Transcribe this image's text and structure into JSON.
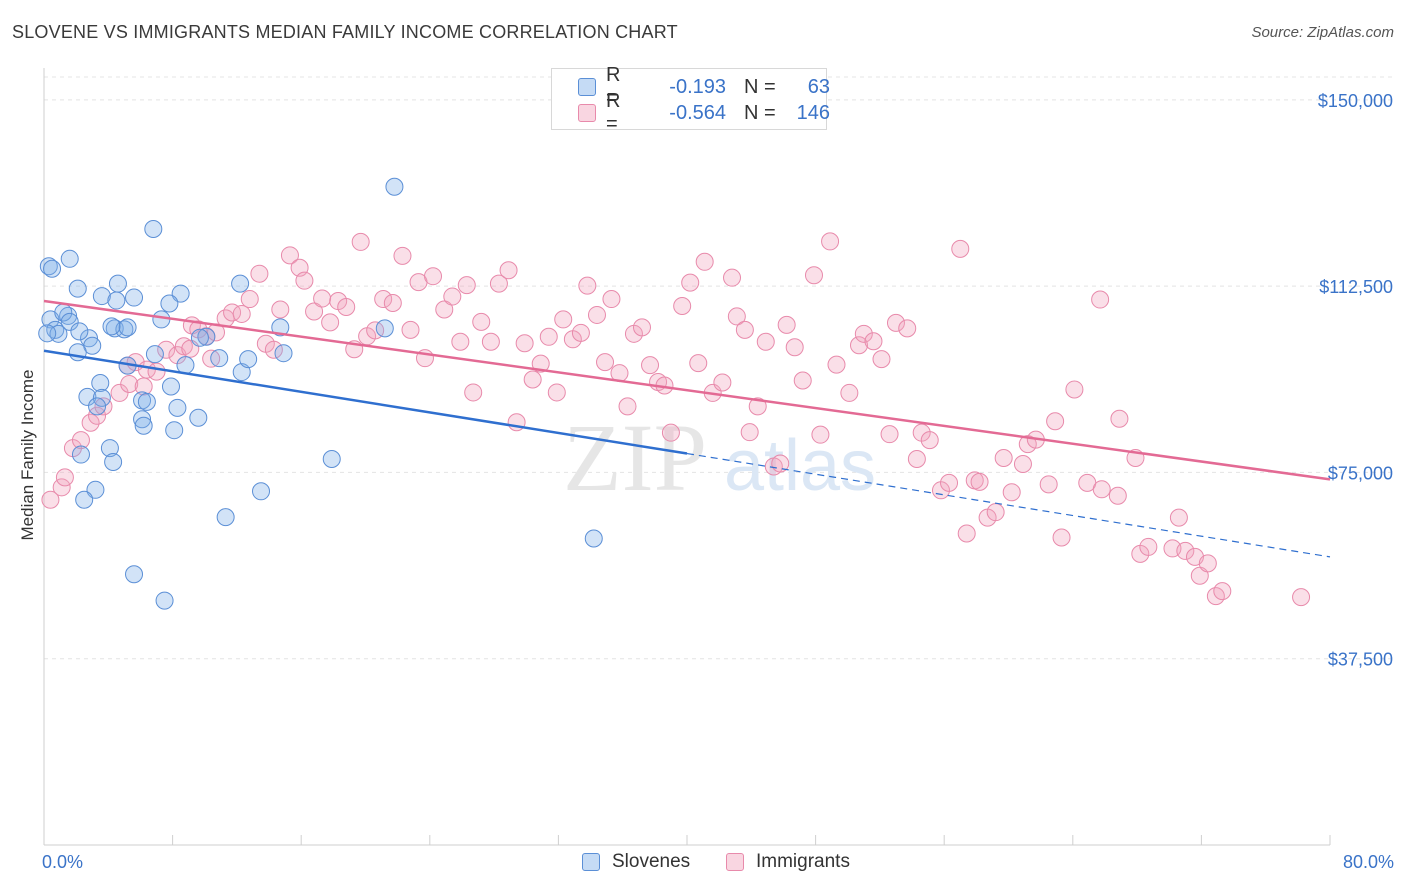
{
  "header": {
    "title": "SLOVENE VS IMMIGRANTS MEDIAN FAMILY INCOME CORRELATION CHART",
    "source": "Source: ZipAtlas.com"
  },
  "watermark": {
    "zip": "ZIP",
    "atlas": "atlas"
  },
  "legend_top": {
    "rows": [
      {
        "r_label": "R =",
        "r_value": "-0.193",
        "n_label": "N =",
        "n_value": "63",
        "color": "#7fb0e8"
      },
      {
        "r_label": "R =",
        "r_value": "-0.564",
        "n_label": "N =",
        "n_value": "146",
        "color": "#f2a3bd"
      }
    ]
  },
  "legend_bottom": {
    "items": [
      {
        "label": "Slovenes"
      },
      {
        "label": "Immigrants"
      }
    ]
  },
  "colors": {
    "slovenes_fill": "rgba(127,176,232,0.35)",
    "slovenes_stroke": "#5b8fd6",
    "slovenes_line": "#2f6fcf",
    "immigrants_fill": "rgba(242,163,189,0.35)",
    "immigrants_stroke": "#e88aab",
    "immigrants_line": "#e36a94",
    "tick_label": "#3a73c8",
    "grid": "#e4e4e4"
  },
  "chart_data": {
    "type": "scatter",
    "title": "SLOVENE VS IMMIGRANTS MEDIAN FAMILY INCOME CORRELATION CHART",
    "xlabel": "",
    "ylabel": "Median Family Income",
    "xlim": [
      0,
      80
    ],
    "ylim": [
      0,
      155000
    ],
    "x_tick_labels": [
      "0.0%",
      "80.0%"
    ],
    "y_ticks": [
      37500,
      75000,
      112500,
      150000
    ],
    "y_tick_labels": [
      "$37,500",
      "$75,000",
      "$112,500",
      "$150,000"
    ],
    "grid": "horizontal dashed",
    "legend_position": "top-center",
    "series": [
      {
        "name": "Slovenes",
        "R": -0.193,
        "N": 63,
        "trend": {
          "x": [
            0,
            40
          ],
          "y": [
            99500,
            78800
          ],
          "dashed_extension_to": [
            80,
            58000
          ]
        },
        "points": [
          [
            0.3,
            116500
          ],
          [
            0.5,
            116000
          ],
          [
            1.6,
            118000
          ],
          [
            2.1,
            112000
          ],
          [
            4.6,
            113000
          ],
          [
            6.8,
            124000
          ],
          [
            8.5,
            111000
          ],
          [
            12.2,
            113000
          ],
          [
            21.8,
            132500
          ],
          [
            0.4,
            105800
          ],
          [
            1.5,
            106500
          ],
          [
            1.2,
            107200
          ],
          [
            3.6,
            110500
          ],
          [
            4.5,
            109600
          ],
          [
            5.6,
            110200
          ],
          [
            7.8,
            109000
          ],
          [
            0.7,
            103700
          ],
          [
            0.9,
            102900
          ],
          [
            1.6,
            105300
          ],
          [
            2.8,
            102000
          ],
          [
            3.0,
            100500
          ],
          [
            2.1,
            99200
          ],
          [
            4.4,
            104000
          ],
          [
            5.0,
            103800
          ],
          [
            5.2,
            104200
          ],
          [
            7.3,
            105800
          ],
          [
            10.1,
            102300
          ],
          [
            10.9,
            98000
          ],
          [
            14.9,
            99000
          ],
          [
            14.7,
            104200
          ],
          [
            21.2,
            104000
          ],
          [
            5.2,
            96500
          ],
          [
            6.9,
            98800
          ],
          [
            8.8,
            96600
          ],
          [
            12.3,
            95200
          ],
          [
            12.7,
            97800
          ],
          [
            3.5,
            93000
          ],
          [
            2.7,
            90200
          ],
          [
            3.6,
            90000
          ],
          [
            3.3,
            88300
          ],
          [
            6.1,
            89500
          ],
          [
            6.4,
            89200
          ],
          [
            7.9,
            92300
          ],
          [
            8.3,
            88000
          ],
          [
            9.6,
            86000
          ],
          [
            6.1,
            85700
          ],
          [
            6.2,
            84400
          ],
          [
            8.1,
            83500
          ],
          [
            4.1,
            79900
          ],
          [
            2.3,
            78600
          ],
          [
            4.3,
            77100
          ],
          [
            17.9,
            77700
          ],
          [
            3.2,
            71500
          ],
          [
            2.5,
            69500
          ],
          [
            13.5,
            71200
          ],
          [
            11.3,
            66000
          ],
          [
            34.2,
            61700
          ],
          [
            5.6,
            54500
          ],
          [
            7.5,
            49200
          ],
          [
            0.2,
            103000
          ],
          [
            2.2,
            103400
          ],
          [
            9.7,
            102100
          ],
          [
            4.2,
            104400
          ]
        ]
      },
      {
        "name": "Immigrants",
        "R": -0.564,
        "N": 146,
        "trend": {
          "x": [
            0,
            80
          ],
          "y": [
            109500,
            73600
          ]
        },
        "points": [
          [
            0.4,
            69500
          ],
          [
            1.1,
            72000
          ],
          [
            1.3,
            74000
          ],
          [
            1.8,
            79900
          ],
          [
            2.3,
            81500
          ],
          [
            2.9,
            85000
          ],
          [
            3.3,
            86400
          ],
          [
            3.7,
            88300
          ],
          [
            4.7,
            91000
          ],
          [
            5.3,
            92800
          ],
          [
            5.2,
            96500
          ],
          [
            5.7,
            97200
          ],
          [
            6.2,
            92300
          ],
          [
            6.4,
            95700
          ],
          [
            7.0,
            95300
          ],
          [
            7.6,
            99700
          ],
          [
            8.3,
            98600
          ],
          [
            8.7,
            100400
          ],
          [
            9.1,
            99900
          ],
          [
            9.2,
            104600
          ],
          [
            9.6,
            103800
          ],
          [
            10.1,
            102400
          ],
          [
            10.4,
            97900
          ],
          [
            10.7,
            103200
          ],
          [
            11.3,
            106000
          ],
          [
            11.7,
            107200
          ],
          [
            12.3,
            106900
          ],
          [
            12.8,
            109900
          ],
          [
            13.4,
            115000
          ],
          [
            13.8,
            100900
          ],
          [
            14.3,
            99700
          ],
          [
            14.7,
            107800
          ],
          [
            15.3,
            118700
          ],
          [
            15.9,
            116200
          ],
          [
            16.2,
            113600
          ],
          [
            16.8,
            107400
          ],
          [
            17.3,
            110000
          ],
          [
            17.8,
            105200
          ],
          [
            18.3,
            109500
          ],
          [
            18.8,
            108300
          ],
          [
            19.3,
            99800
          ],
          [
            19.7,
            121400
          ],
          [
            20.1,
            102400
          ],
          [
            20.6,
            103600
          ],
          [
            21.1,
            109900
          ],
          [
            21.7,
            109100
          ],
          [
            22.3,
            118600
          ],
          [
            22.8,
            103700
          ],
          [
            23.3,
            113300
          ],
          [
            23.7,
            98000
          ],
          [
            24.2,
            114500
          ],
          [
            24.9,
            107800
          ],
          [
            25.4,
            110400
          ],
          [
            25.9,
            101300
          ],
          [
            26.3,
            112700
          ],
          [
            26.7,
            91100
          ],
          [
            27.2,
            105300
          ],
          [
            27.8,
            101300
          ],
          [
            28.3,
            113000
          ],
          [
            28.9,
            115700
          ],
          [
            29.4,
            85100
          ],
          [
            29.9,
            101000
          ],
          [
            30.4,
            93700
          ],
          [
            30.9,
            96900
          ],
          [
            31.4,
            102300
          ],
          [
            31.9,
            91100
          ],
          [
            32.3,
            105800
          ],
          [
            32.9,
            101800
          ],
          [
            33.4,
            103100
          ],
          [
            33.8,
            112600
          ],
          [
            34.4,
            106700
          ],
          [
            34.9,
            97200
          ],
          [
            35.3,
            109900
          ],
          [
            35.8,
            95000
          ],
          [
            36.3,
            88300
          ],
          [
            36.7,
            102900
          ],
          [
            37.2,
            104200
          ],
          [
            37.7,
            96600
          ],
          [
            38.2,
            93200
          ],
          [
            38.6,
            92500
          ],
          [
            39.0,
            83000
          ],
          [
            39.7,
            108500
          ],
          [
            40.2,
            113200
          ],
          [
            40.7,
            97000
          ],
          [
            41.1,
            117400
          ],
          [
            41.6,
            91000
          ],
          [
            42.2,
            93100
          ],
          [
            42.8,
            114200
          ],
          [
            43.1,
            106400
          ],
          [
            43.6,
            103700
          ],
          [
            43.9,
            83100
          ],
          [
            44.4,
            88300
          ],
          [
            44.9,
            101300
          ],
          [
            45.4,
            76200
          ],
          [
            45.8,
            76800
          ],
          [
            46.2,
            104700
          ],
          [
            46.7,
            100200
          ],
          [
            47.2,
            93500
          ],
          [
            47.9,
            114700
          ],
          [
            48.3,
            82600
          ],
          [
            48.9,
            121500
          ],
          [
            49.3,
            96700
          ],
          [
            50.1,
            91000
          ],
          [
            50.7,
            100600
          ],
          [
            51.0,
            102900
          ],
          [
            51.6,
            101400
          ],
          [
            52.1,
            97800
          ],
          [
            52.6,
            82700
          ],
          [
            53.0,
            105100
          ],
          [
            53.7,
            104000
          ],
          [
            54.3,
            77700
          ],
          [
            54.6,
            83000
          ],
          [
            55.1,
            81500
          ],
          [
            55.8,
            71400
          ],
          [
            56.3,
            72900
          ],
          [
            57.0,
            120000
          ],
          [
            57.4,
            62700
          ],
          [
            57.9,
            73400
          ],
          [
            58.2,
            73100
          ],
          [
            58.7,
            65900
          ],
          [
            59.2,
            67000
          ],
          [
            59.7,
            77900
          ],
          [
            60.2,
            71000
          ],
          [
            60.9,
            76700
          ],
          [
            61.2,
            80700
          ],
          [
            61.7,
            81600
          ],
          [
            62.5,
            72600
          ],
          [
            62.9,
            85300
          ],
          [
            63.3,
            61900
          ],
          [
            64.1,
            91700
          ],
          [
            64.9,
            72900
          ],
          [
            65.7,
            109800
          ],
          [
            65.8,
            71600
          ],
          [
            66.8,
            70300
          ],
          [
            66.9,
            85800
          ],
          [
            67.9,
            77900
          ],
          [
            68.2,
            58600
          ],
          [
            68.7,
            60000
          ],
          [
            70.2,
            59700
          ],
          [
            70.6,
            65900
          ],
          [
            71.0,
            59200
          ],
          [
            71.6,
            58000
          ],
          [
            71.9,
            54200
          ],
          [
            72.4,
            56700
          ],
          [
            72.9,
            50100
          ],
          [
            73.3,
            51100
          ],
          [
            78.2,
            49900
          ]
        ]
      }
    ]
  }
}
